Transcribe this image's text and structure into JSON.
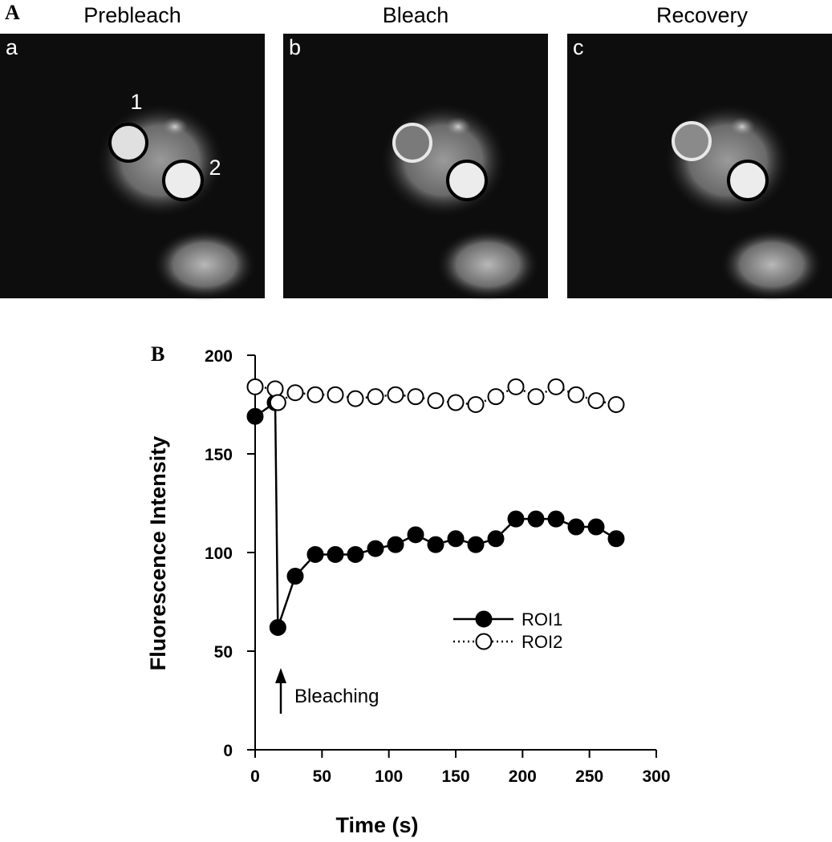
{
  "figure_label": "A",
  "panels": [
    {
      "title": "Prebleach",
      "label": "a",
      "roi_labels": [
        "1",
        "2"
      ]
    },
    {
      "title": "Bleach",
      "label": "b"
    },
    {
      "title": "Recovery",
      "label": "c"
    }
  ],
  "chart_data": {
    "type": "line",
    "panel_label": "B",
    "xlabel": "Time (s)",
    "ylabel": "Fluorescence Intensity",
    "annotation": "Bleaching",
    "x": [
      0,
      15,
      17,
      30,
      45,
      60,
      75,
      90,
      105,
      120,
      135,
      150,
      165,
      180,
      195,
      210,
      225,
      240,
      255,
      270
    ],
    "series": [
      {
        "name": "ROI1",
        "color": "#000000",
        "marker": "filled",
        "linestyle": "solid",
        "values": [
          169,
          176,
          62,
          88,
          99,
          99,
          99,
          102,
          104,
          109,
          104,
          107,
          104,
          107,
          117,
          117,
          117,
          113,
          113,
          107
        ]
      },
      {
        "name": "ROI2",
        "color": "#000000",
        "marker": "open",
        "linestyle": "dotted",
        "values": [
          184,
          183,
          176,
          181,
          180,
          180,
          178,
          179,
          180,
          179,
          177,
          176,
          175,
          179,
          184,
          179,
          184,
          180,
          177,
          175
        ]
      }
    ],
    "xlim": [
      0,
      300
    ],
    "xticks": [
      0,
      50,
      100,
      150,
      200,
      250,
      300
    ],
    "ylim": [
      0,
      200
    ],
    "yticks": [
      0,
      50,
      100,
      150,
      200
    ],
    "legend": "lower right",
    "grid": false
  }
}
